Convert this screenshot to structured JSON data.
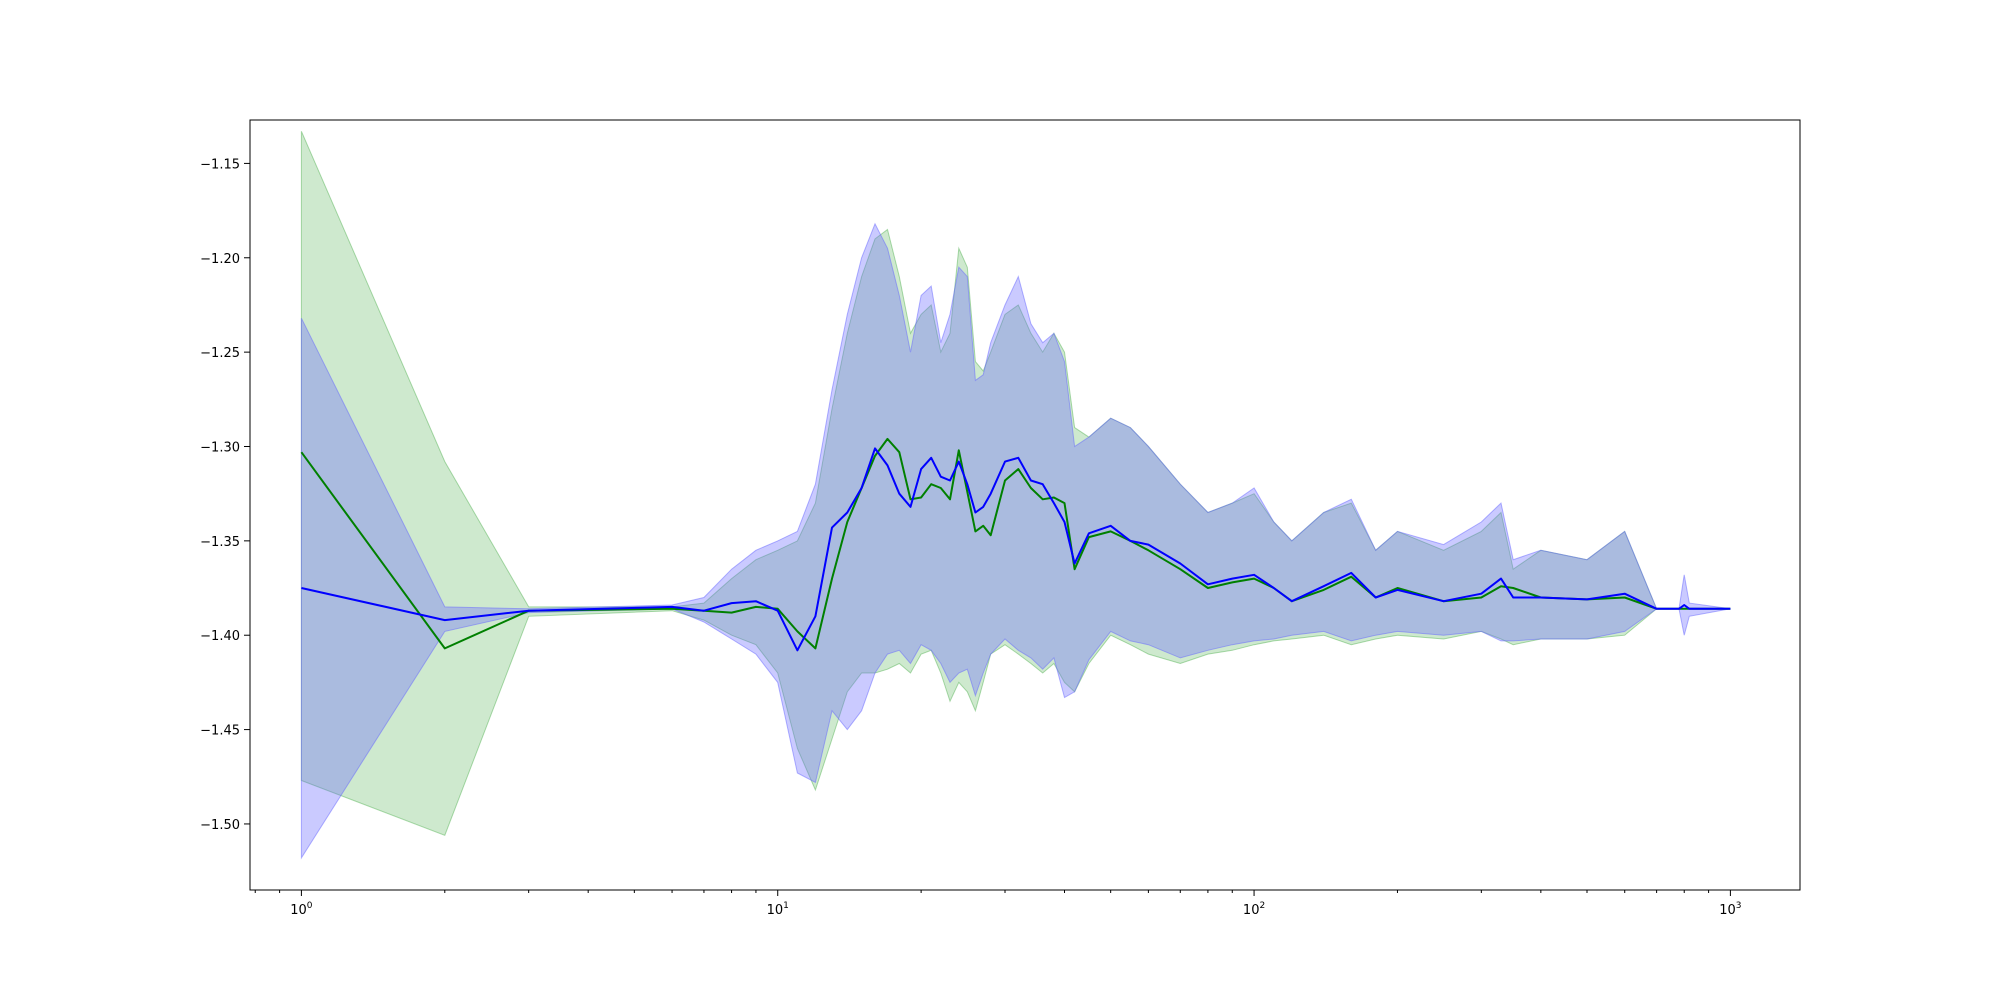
{
  "chart_data": {
    "type": "line",
    "title": "",
    "xlabel": "",
    "ylabel": "",
    "xscale": "log",
    "xlim": [
      0.78,
      1400
    ],
    "ylim": [
      -1.535,
      -1.127
    ],
    "grid": false,
    "x_ticks": [
      {
        "base": "10",
        "exp": "0",
        "value": 1
      },
      {
        "base": "10",
        "exp": "1",
        "value": 10
      },
      {
        "base": "10",
        "exp": "2",
        "value": 100
      },
      {
        "base": "10",
        "exp": "3",
        "value": 1000
      }
    ],
    "y_ticks": [
      {
        "label": "−1.15",
        "value": -1.15
      },
      {
        "label": "−1.20",
        "value": -1.2
      },
      {
        "label": "−1.25",
        "value": -1.25
      },
      {
        "label": "−1.30",
        "value": -1.3
      },
      {
        "label": "−1.35",
        "value": -1.35
      },
      {
        "label": "−1.40",
        "value": -1.4
      },
      {
        "label": "−1.45",
        "value": -1.45
      },
      {
        "label": "−1.50",
        "value": -1.5
      }
    ],
    "series": [
      {
        "color": "#008000",
        "band_color": "#2ca02c",
        "band_opacity": 0.23,
        "x": [
          1,
          2,
          3,
          6,
          7,
          8,
          9,
          10,
          11,
          12,
          13,
          14,
          15,
          16,
          17,
          18,
          19,
          20,
          21,
          22,
          23,
          24,
          25,
          26,
          27,
          28,
          30,
          32,
          34,
          36,
          38,
          40,
          42,
          45,
          50,
          55,
          60,
          70,
          80,
          90,
          100,
          110,
          120,
          140,
          160,
          180,
          200,
          250,
          300,
          330,
          350,
          400,
          500,
          600,
          700,
          800,
          1000
        ],
        "y": [
          -1.303,
          -1.407,
          -1.387,
          -1.386,
          -1.387,
          -1.388,
          -1.385,
          -1.386,
          -1.398,
          -1.407,
          -1.37,
          -1.34,
          -1.322,
          -1.305,
          -1.296,
          -1.303,
          -1.328,
          -1.327,
          -1.32,
          -1.322,
          -1.328,
          -1.302,
          -1.324,
          -1.345,
          -1.342,
          -1.347,
          -1.318,
          -1.312,
          -1.322,
          -1.328,
          -1.327,
          -1.33,
          -1.365,
          -1.348,
          -1.345,
          -1.35,
          -1.355,
          -1.365,
          -1.375,
          -1.372,
          -1.37,
          -1.375,
          -1.382,
          -1.376,
          -1.369,
          -1.38,
          -1.375,
          -1.382,
          -1.38,
          -1.374,
          -1.375,
          -1.38,
          -1.381,
          -1.38,
          -1.386,
          -1.386,
          -1.386
        ],
        "upper": [
          -1.133,
          -1.308,
          -1.385,
          -1.385,
          -1.383,
          -1.37,
          -1.36,
          -1.355,
          -1.35,
          -1.33,
          -1.28,
          -1.24,
          -1.21,
          -1.19,
          -1.185,
          -1.21,
          -1.24,
          -1.23,
          -1.225,
          -1.25,
          -1.24,
          -1.195,
          -1.205,
          -1.255,
          -1.26,
          -1.25,
          -1.23,
          -1.225,
          -1.24,
          -1.25,
          -1.24,
          -1.25,
          -1.29,
          -1.295,
          -1.285,
          -1.29,
          -1.3,
          -1.32,
          -1.335,
          -1.33,
          -1.325,
          -1.34,
          -1.35,
          -1.335,
          -1.33,
          -1.355,
          -1.345,
          -1.355,
          -1.345,
          -1.335,
          -1.365,
          -1.355,
          -1.36,
          -1.345,
          -1.386,
          -1.386,
          -1.386
        ],
        "lower": [
          -1.477,
          -1.506,
          -1.39,
          -1.387,
          -1.392,
          -1.4,
          -1.405,
          -1.42,
          -1.46,
          -1.482,
          -1.455,
          -1.43,
          -1.42,
          -1.42,
          -1.418,
          -1.415,
          -1.42,
          -1.41,
          -1.408,
          -1.42,
          -1.435,
          -1.425,
          -1.43,
          -1.44,
          -1.425,
          -1.41,
          -1.405,
          -1.41,
          -1.415,
          -1.42,
          -1.415,
          -1.425,
          -1.43,
          -1.415,
          -1.4,
          -1.405,
          -1.41,
          -1.415,
          -1.41,
          -1.408,
          -1.405,
          -1.403,
          -1.402,
          -1.4,
          -1.405,
          -1.402,
          -1.4,
          -1.402,
          -1.398,
          -1.402,
          -1.405,
          -1.402,
          -1.402,
          -1.4,
          -1.386,
          -1.386,
          -1.386
        ]
      },
      {
        "color": "#0000ff",
        "band_color": "#6666ff",
        "band_opacity": 0.35,
        "x": [
          1,
          2,
          3,
          6,
          7,
          8,
          9,
          10,
          11,
          12,
          13,
          14,
          15,
          16,
          17,
          18,
          19,
          20,
          21,
          22,
          23,
          24,
          25,
          26,
          27,
          28,
          30,
          32,
          34,
          36,
          38,
          40,
          42,
          45,
          50,
          55,
          60,
          70,
          80,
          90,
          100,
          110,
          120,
          140,
          160,
          180,
          200,
          250,
          300,
          330,
          350,
          400,
          500,
          600,
          700,
          780,
          800,
          820,
          1000
        ],
        "y": [
          -1.375,
          -1.392,
          -1.387,
          -1.385,
          -1.387,
          -1.383,
          -1.382,
          -1.387,
          -1.408,
          -1.39,
          -1.343,
          -1.335,
          -1.322,
          -1.301,
          -1.31,
          -1.325,
          -1.332,
          -1.312,
          -1.306,
          -1.316,
          -1.318,
          -1.308,
          -1.32,
          -1.335,
          -1.332,
          -1.325,
          -1.308,
          -1.306,
          -1.318,
          -1.32,
          -1.33,
          -1.34,
          -1.362,
          -1.346,
          -1.342,
          -1.35,
          -1.352,
          -1.362,
          -1.373,
          -1.37,
          -1.368,
          -1.375,
          -1.382,
          -1.374,
          -1.367,
          -1.38,
          -1.376,
          -1.382,
          -1.378,
          -1.37,
          -1.38,
          -1.38,
          -1.381,
          -1.378,
          -1.386,
          -1.386,
          -1.384,
          -1.386,
          -1.386
        ],
        "upper": [
          -1.232,
          -1.385,
          -1.386,
          -1.384,
          -1.38,
          -1.365,
          -1.355,
          -1.35,
          -1.345,
          -1.32,
          -1.27,
          -1.23,
          -1.2,
          -1.182,
          -1.195,
          -1.22,
          -1.25,
          -1.22,
          -1.215,
          -1.245,
          -1.23,
          -1.205,
          -1.21,
          -1.265,
          -1.262,
          -1.245,
          -1.225,
          -1.21,
          -1.235,
          -1.245,
          -1.24,
          -1.255,
          -1.3,
          -1.295,
          -1.285,
          -1.29,
          -1.3,
          -1.32,
          -1.335,
          -1.33,
          -1.322,
          -1.34,
          -1.35,
          -1.335,
          -1.328,
          -1.355,
          -1.345,
          -1.352,
          -1.34,
          -1.33,
          -1.36,
          -1.355,
          -1.36,
          -1.345,
          -1.386,
          -1.386,
          -1.368,
          -1.383,
          -1.386
        ],
        "lower": [
          -1.518,
          -1.398,
          -1.388,
          -1.386,
          -1.393,
          -1.402,
          -1.41,
          -1.425,
          -1.473,
          -1.478,
          -1.44,
          -1.45,
          -1.44,
          -1.42,
          -1.41,
          -1.408,
          -1.415,
          -1.405,
          -1.408,
          -1.415,
          -1.425,
          -1.42,
          -1.418,
          -1.432,
          -1.42,
          -1.41,
          -1.402,
          -1.408,
          -1.412,
          -1.418,
          -1.412,
          -1.433,
          -1.43,
          -1.413,
          -1.398,
          -1.403,
          -1.405,
          -1.412,
          -1.408,
          -1.405,
          -1.403,
          -1.402,
          -1.4,
          -1.398,
          -1.403,
          -1.4,
          -1.398,
          -1.4,
          -1.398,
          -1.403,
          -1.403,
          -1.402,
          -1.402,
          -1.398,
          -1.386,
          -1.386,
          -1.4,
          -1.39,
          -1.386
        ]
      }
    ]
  }
}
